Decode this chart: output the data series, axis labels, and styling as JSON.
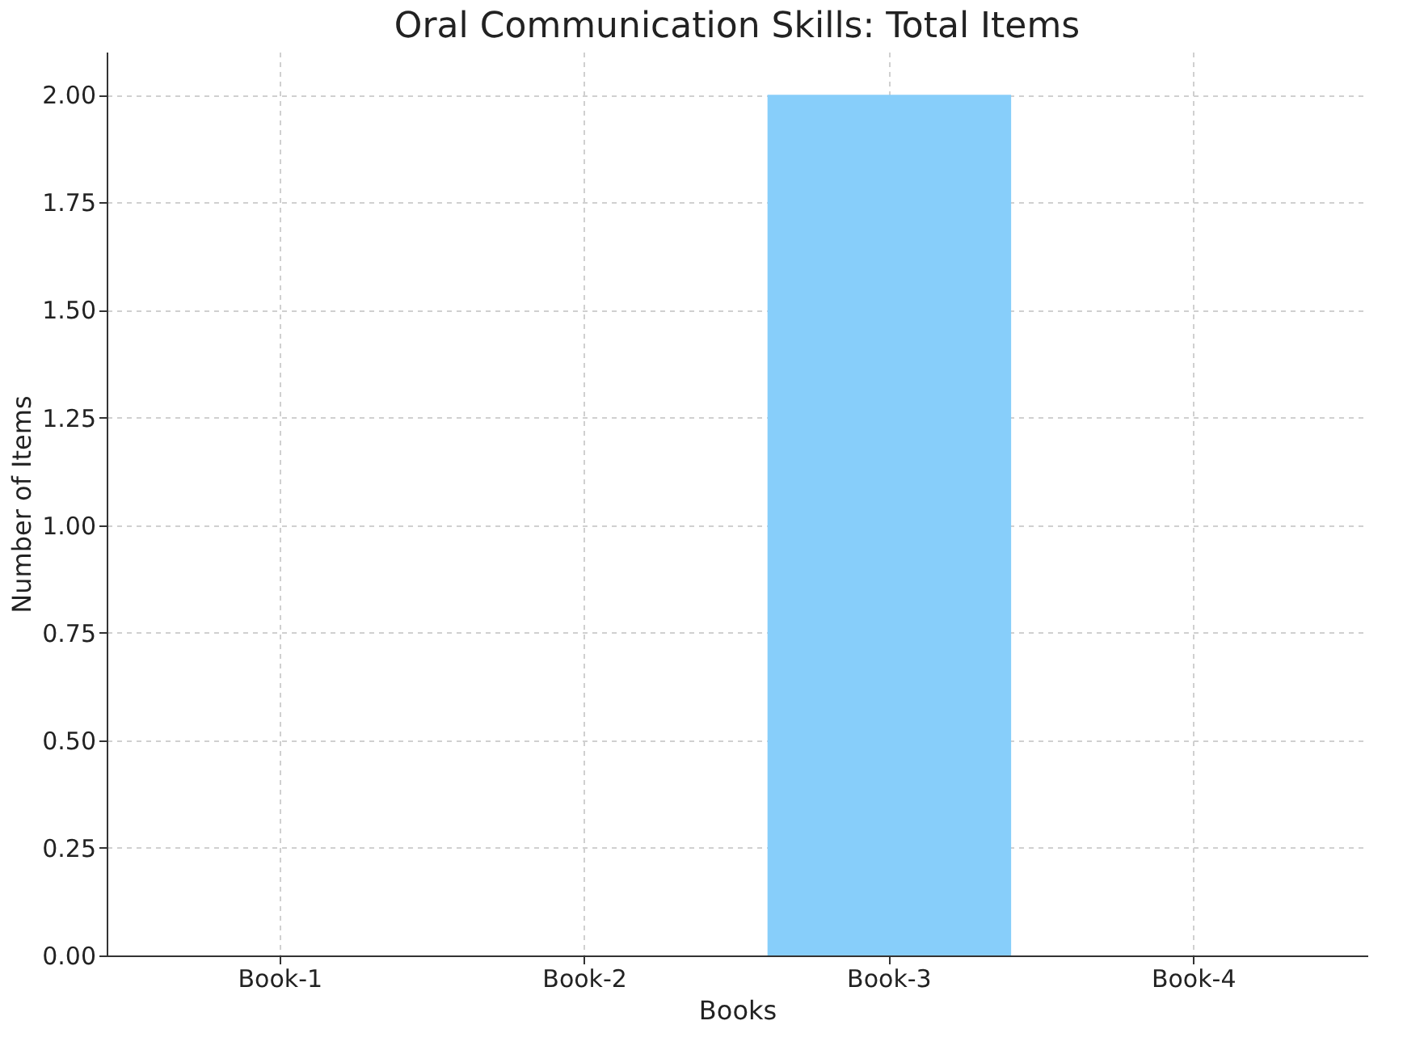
{
  "chart_data": {
    "type": "bar",
    "title": "Oral Communication Skills: Total Items",
    "xlabel": "Books",
    "ylabel": "Number of Items",
    "categories": [
      "Book-1",
      "Book-2",
      "Book-3",
      "Book-4"
    ],
    "values": [
      0,
      0,
      2,
      0
    ],
    "color": "#87cefa",
    "ylim": [
      0,
      2.1
    ],
    "yticks": [
      {
        "value": 0,
        "label": "0.00"
      },
      {
        "value": 0.25,
        "label": "0.25"
      },
      {
        "value": 0.5,
        "label": "0.50"
      },
      {
        "value": 0.75,
        "label": "0.75"
      },
      {
        "value": 1,
        "label": "1.00"
      },
      {
        "value": 1.25,
        "label": "1.25"
      },
      {
        "value": 1.5,
        "label": "1.50"
      },
      {
        "value": 1.75,
        "label": "1.75"
      },
      {
        "value": 2,
        "label": "2.00"
      }
    ],
    "grid": true
  }
}
